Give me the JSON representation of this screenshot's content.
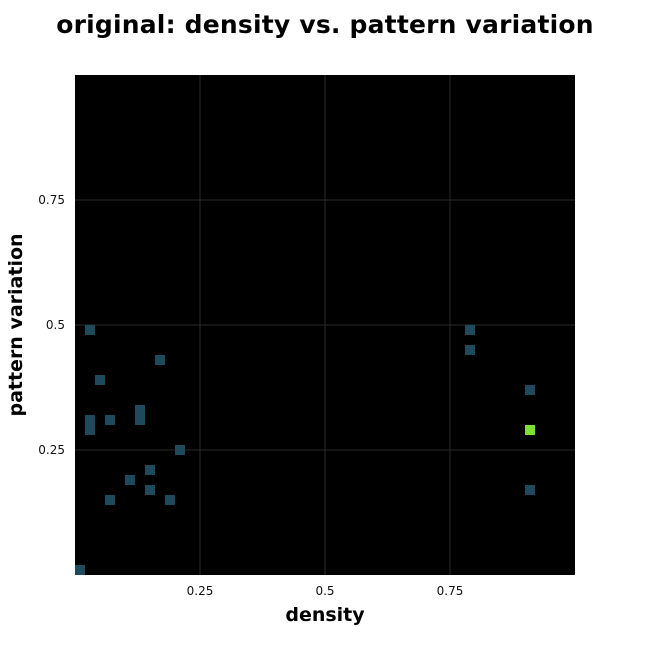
{
  "chart_data": {
    "type": "heatmap",
    "title": "original: density vs. pattern variation",
    "xlabel": "density",
    "ylabel": "pattern variation",
    "xlim": [
      0,
      1
    ],
    "ylim": [
      0,
      1
    ],
    "x_ticks": [
      {
        "value": 0.25,
        "label": "0.25"
      },
      {
        "value": 0.5,
        "label": "0.5"
      },
      {
        "value": 0.75,
        "label": "0.75"
      }
    ],
    "y_ticks": [
      {
        "value": 0.25,
        "label": "0.25"
      },
      {
        "value": 0.5,
        "label": "0.5"
      },
      {
        "value": 0.75,
        "label": "0.75"
      }
    ],
    "grid": true,
    "background_color": "#000000",
    "grid_color": "#2a2a2a",
    "low_color": "#1f4a5e",
    "high_color": "#7fe02f",
    "cells": [
      {
        "x": 0.01,
        "y": 0.01,
        "value": 1
      },
      {
        "x": 0.03,
        "y": 0.49,
        "value": 1
      },
      {
        "x": 0.03,
        "y": 0.31,
        "value": 1
      },
      {
        "x": 0.03,
        "y": 0.3,
        "value": 1
      },
      {
        "x": 0.03,
        "y": 0.29,
        "value": 1
      },
      {
        "x": 0.05,
        "y": 0.39,
        "value": 1
      },
      {
        "x": 0.07,
        "y": 0.31,
        "value": 1
      },
      {
        "x": 0.07,
        "y": 0.15,
        "value": 1
      },
      {
        "x": 0.11,
        "y": 0.19,
        "value": 1
      },
      {
        "x": 0.13,
        "y": 0.33,
        "value": 1
      },
      {
        "x": 0.13,
        "y": 0.32,
        "value": 1
      },
      {
        "x": 0.13,
        "y": 0.31,
        "value": 1
      },
      {
        "x": 0.15,
        "y": 0.21,
        "value": 1
      },
      {
        "x": 0.15,
        "y": 0.17,
        "value": 1
      },
      {
        "x": 0.17,
        "y": 0.43,
        "value": 1
      },
      {
        "x": 0.19,
        "y": 0.15,
        "value": 1
      },
      {
        "x": 0.21,
        "y": 0.25,
        "value": 1
      },
      {
        "x": 0.79,
        "y": 0.49,
        "value": 1
      },
      {
        "x": 0.79,
        "y": 0.45,
        "value": 1
      },
      {
        "x": 0.91,
        "y": 0.37,
        "value": 1
      },
      {
        "x": 0.91,
        "y": 0.29,
        "value": 5
      },
      {
        "x": 0.91,
        "y": 0.17,
        "value": 1
      }
    ]
  }
}
